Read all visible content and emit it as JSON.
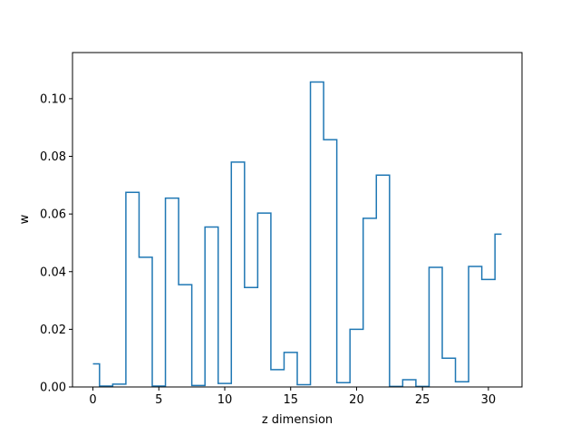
{
  "chart_data": {
    "type": "line",
    "style": "step",
    "xlabel": "z dimension",
    "ylabel": "w",
    "xlim": [
      -1.55,
      32.55
    ],
    "ylim": [
      0,
      0.116
    ],
    "xticks": [
      0,
      5,
      10,
      15,
      20,
      25,
      30
    ],
    "xtick_labels": [
      "0",
      "5",
      "10",
      "15",
      "20",
      "25",
      "30"
    ],
    "yticks": [
      0.0,
      0.02,
      0.04,
      0.06,
      0.08,
      0.1
    ],
    "ytick_labels": [
      "0.00",
      "0.02",
      "0.04",
      "0.06",
      "0.08",
      "0.10"
    ],
    "grid": false,
    "series": [
      {
        "color": "#1f77b4",
        "x": [
          0,
          1,
          2,
          3,
          4,
          5,
          6,
          7,
          8,
          9,
          10,
          11,
          12,
          13,
          14,
          15,
          16,
          17,
          18,
          19,
          20,
          21,
          22,
          23,
          24,
          25,
          26,
          27,
          28,
          29,
          30,
          31
        ],
        "values": [
          0.008,
          0.0003,
          0.001,
          0.0675,
          0.045,
          0.0003,
          0.0655,
          0.0355,
          0.0005,
          0.0555,
          0.0012,
          0.078,
          0.0345,
          0.0603,
          0.006,
          0.012,
          0.0008,
          0.1058,
          0.0858,
          0.0015,
          0.02,
          0.0585,
          0.0735,
          0.0002,
          0.0025,
          0.0002,
          0.0415,
          0.01,
          0.0018,
          0.0418,
          0.0373,
          0.053
        ]
      }
    ]
  }
}
